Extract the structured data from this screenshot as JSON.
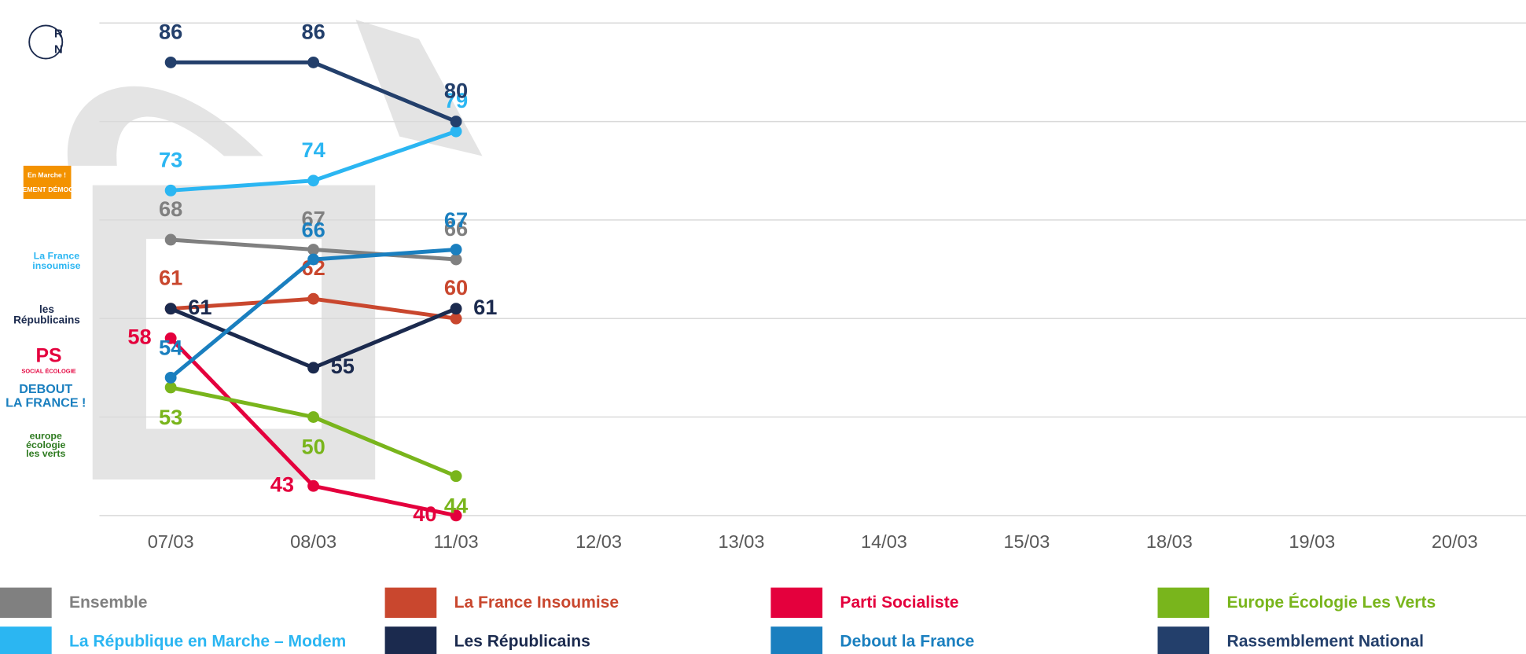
{
  "chart_data": {
    "type": "line",
    "categories": [
      "07/03",
      "08/03",
      "11/03",
      "12/03",
      "13/03",
      "14/03",
      "15/03",
      "18/03",
      "19/03",
      "20/03"
    ],
    "ylim": [
      40,
      90
    ],
    "yticks": [
      40,
      50,
      60,
      70,
      80,
      90
    ],
    "grid": true,
    "series": [
      {
        "name": "Ensemble",
        "color": "#808080",
        "values": [
          68,
          67,
          66,
          null,
          null,
          null,
          null,
          null,
          null,
          null
        ]
      },
      {
        "name": "La France Insoumise",
        "color": "#c9472e",
        "values": [
          61,
          62,
          60,
          null,
          null,
          null,
          null,
          null,
          null,
          null
        ]
      },
      {
        "name": "Parti Socialiste",
        "color": "#e4003d",
        "values": [
          58,
          43,
          40,
          null,
          null,
          null,
          null,
          null,
          null,
          null
        ]
      },
      {
        "name": "Europe Écologie Les Verts",
        "color": "#79b51c",
        "values": [
          53,
          50,
          44,
          null,
          null,
          null,
          null,
          null,
          null,
          null
        ]
      },
      {
        "name": "La République en Marche – Modem",
        "color": "#2bb6f2",
        "values": [
          73,
          74,
          79,
          null,
          null,
          null,
          null,
          null,
          null,
          null
        ]
      },
      {
        "name": "Les Républicains",
        "color": "#1b2a4e",
        "values": [
          61,
          55,
          61,
          null,
          null,
          null,
          null,
          null,
          null,
          null
        ]
      },
      {
        "name": "Debout la France",
        "color": "#1a7fbf",
        "values": [
          54,
          66,
          67,
          null,
          null,
          null,
          null,
          null,
          null,
          null
        ]
      },
      {
        "name": "Rassemblement National",
        "color": "#233f6b",
        "values": [
          86,
          86,
          80,
          null,
          null,
          null,
          null,
          null,
          null,
          null
        ]
      }
    ]
  },
  "logos": [
    [
      "R",
      "N"
    ],
    [
      "En Marche !",
      "MOUVEMENT DÉMOCRATE"
    ],
    [
      "La France",
      "insoumise"
    ],
    [
      "les",
      "Républicains"
    ],
    [
      "PS",
      "SOCIAL ÉCOLOGIE"
    ],
    [
      "DEBOUT",
      "LA FRANCE !"
    ],
    [
      "europe",
      "écologie",
      "les verts"
    ]
  ]
}
